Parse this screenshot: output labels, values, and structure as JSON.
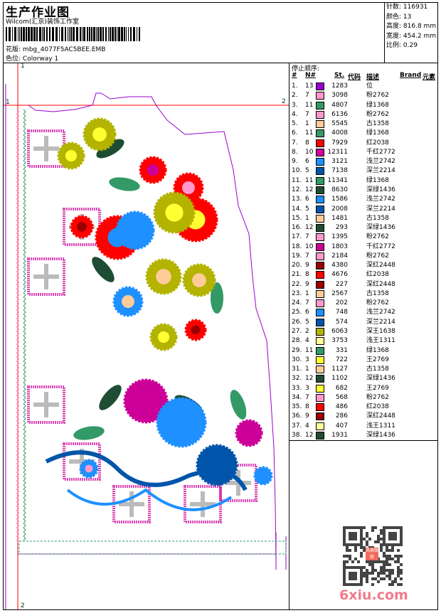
{
  "header": {
    "title": "生产作业图",
    "company": "Wilcom(汇京)装饰工作室",
    "design_label": "花版:",
    "design_file": "mbg_4077F5AC5BEE.EMB",
    "colorway_label": "色位:",
    "colorway": "Colorway 1"
  },
  "info": {
    "stitches_label": "针数:",
    "stitches": "116931",
    "colors_label": "颜色:",
    "colors": "13",
    "height_label": "高度:",
    "height": "816.8 mm",
    "width_label": "宽度:",
    "width": "454.2 mm",
    "scale_label": "比例:",
    "scale": "0.29"
  },
  "stop_sequence": {
    "title": "停止顺序:",
    "columns": [
      "#",
      "N#",
      "St.",
      "代码",
      "描述",
      "Brand",
      "元素"
    ],
    "rows": [
      {
        "n": "1.",
        "needle": "13",
        "color": "#9900cc",
        "st": "1283",
        "desc": "位"
      },
      {
        "n": "2.",
        "needle": "7",
        "color": "#ff99cc",
        "st": "3098",
        "desc": "粉2762"
      },
      {
        "n": "3.",
        "needle": "11",
        "color": "#339966",
        "st": "4807",
        "desc": "绿1368"
      },
      {
        "n": "4.",
        "needle": "7",
        "color": "#ff99cc",
        "st": "6136",
        "desc": "粉2762"
      },
      {
        "n": "5.",
        "needle": "1",
        "color": "#ffcc99",
        "st": "5545",
        "desc": "古1358"
      },
      {
        "n": "6.",
        "needle": "11",
        "color": "#339966",
        "st": "4008",
        "desc": "绿1368"
      },
      {
        "n": "7.",
        "needle": "8",
        "color": "#ff0000",
        "st": "7929",
        "desc": "红2038"
      },
      {
        "n": "8.",
        "needle": "10",
        "color": "#cc0099",
        "st": "12311",
        "desc": "千红2772"
      },
      {
        "n": "9.",
        "needle": "6",
        "color": "#1e90ff",
        "st": "3121",
        "desc": "浅兰2742"
      },
      {
        "n": "10.",
        "needle": "5",
        "color": "#0055aa",
        "st": "7138",
        "desc": "深兰2214"
      },
      {
        "n": "11.",
        "needle": "11",
        "color": "#339966",
        "st": "11341",
        "desc": "绿1368"
      },
      {
        "n": "12.",
        "needle": "12",
        "color": "#1f4d33",
        "st": "8630",
        "desc": "深绿1436"
      },
      {
        "n": "13.",
        "needle": "6",
        "color": "#1e90ff",
        "st": "1586",
        "desc": "浅兰2742"
      },
      {
        "n": "14.",
        "needle": "5",
        "color": "#0055aa",
        "st": "2008",
        "desc": "深兰2214"
      },
      {
        "n": "15.",
        "needle": "1",
        "color": "#ffcc99",
        "st": "1481",
        "desc": "古1358"
      },
      {
        "n": "16.",
        "needle": "12",
        "color": "#1f4d33",
        "st": "293",
        "desc": "深绿1436"
      },
      {
        "n": "17.",
        "needle": "7",
        "color": "#ff99cc",
        "st": "1395",
        "desc": "粉2762"
      },
      {
        "n": "18.",
        "needle": "10",
        "color": "#cc0099",
        "st": "1803",
        "desc": "千红2772"
      },
      {
        "n": "19.",
        "needle": "7",
        "color": "#ff99cc",
        "st": "2184",
        "desc": "粉2762"
      },
      {
        "n": "20.",
        "needle": "9",
        "color": "#990000",
        "st": "4380",
        "desc": "深红2448"
      },
      {
        "n": "21.",
        "needle": "8",
        "color": "#ff0000",
        "st": "4676",
        "desc": "红2038"
      },
      {
        "n": "22.",
        "needle": "9",
        "color": "#990000",
        "st": "227",
        "desc": "深红2448"
      },
      {
        "n": "23.",
        "needle": "1",
        "color": "#ffcc99",
        "st": "2567",
        "desc": "古1358"
      },
      {
        "n": "24.",
        "needle": "7",
        "color": "#ff99cc",
        "st": "202",
        "desc": "粉2762"
      },
      {
        "n": "25.",
        "needle": "6",
        "color": "#1e90ff",
        "st": "748",
        "desc": "浅兰2742"
      },
      {
        "n": "26.",
        "needle": "5",
        "color": "#0055aa",
        "st": "574",
        "desc": "深兰2214"
      },
      {
        "n": "27.",
        "needle": "2",
        "color": "#b3b300",
        "st": "6063",
        "desc": "深王1638"
      },
      {
        "n": "28.",
        "needle": "4",
        "color": "#ffff99",
        "st": "3753",
        "desc": "浅王1311"
      },
      {
        "n": "29.",
        "needle": "11",
        "color": "#339966",
        "st": "331",
        "desc": "绿1368"
      },
      {
        "n": "30.",
        "needle": "3",
        "color": "#ffff33",
        "st": "722",
        "desc": "王2769"
      },
      {
        "n": "31.",
        "needle": "1",
        "color": "#ffcc99",
        "st": "1127",
        "desc": "古1358"
      },
      {
        "n": "32.",
        "needle": "12",
        "color": "#1f4d33",
        "st": "1102",
        "desc": "深绿1436"
      },
      {
        "n": "33.",
        "needle": "3",
        "color": "#ffff33",
        "st": "682",
        "desc": "王2769"
      },
      {
        "n": "34.",
        "needle": "7",
        "color": "#ff99cc",
        "st": "568",
        "desc": "粉2762"
      },
      {
        "n": "35.",
        "needle": "8",
        "color": "#ff0000",
        "st": "486",
        "desc": "红2038"
      },
      {
        "n": "36.",
        "needle": "9",
        "color": "#990000",
        "st": "286",
        "desc": "深红2448"
      },
      {
        "n": "37.",
        "needle": "4",
        "color": "#ffff99",
        "st": "407",
        "desc": "浅王1311"
      },
      {
        "n": "38.",
        "needle": "12",
        "color": "#1f4d33",
        "st": "1931",
        "desc": "深绿1436"
      }
    ]
  },
  "design_view": {
    "marker_top": "1",
    "marker_left": "1",
    "marker_right": "2",
    "marker_bottom": "2"
  },
  "qr": {
    "seal_text": "风景图版",
    "watermark": "6xiu.com"
  }
}
